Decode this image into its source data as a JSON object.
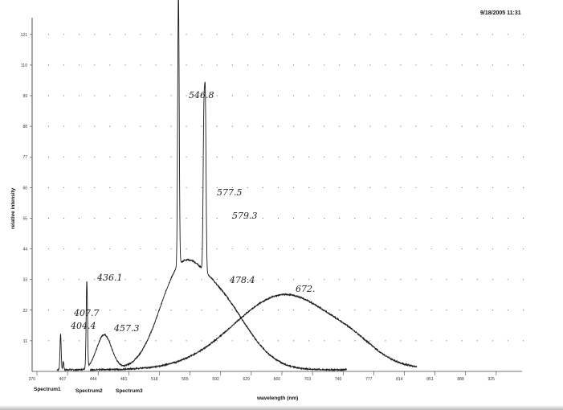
{
  "timestamp": "9/18/2005 11:31",
  "chart_data": {
    "type": "line",
    "xlabel": "wavelength (nm)",
    "ylabel": "relative intensity",
    "xlim": [
      370,
      962
    ],
    "ylim": [
      0,
      127
    ],
    "x_ticks": [
      "370",
      "407",
      "444",
      "481",
      "518",
      "555",
      "592",
      "629",
      "666",
      "703",
      "740",
      "777",
      "814",
      "851",
      "888",
      "925"
    ],
    "y_ticks": [
      "11",
      "22",
      "33",
      "44",
      "55",
      "66",
      "77",
      "88",
      "99",
      "110",
      "121"
    ],
    "grid": "dotted",
    "legend": [
      "Spectrum1",
      "Spectrum2",
      "Spectrum3"
    ],
    "annotations": [
      {
        "text": "546.8",
        "x": 546.8,
        "y": 100
      },
      {
        "text": "577.5",
        "x": 577.5,
        "y": 63
      },
      {
        "text": "579.3",
        "x": 579.3,
        "y": 56
      },
      {
        "text": "436.1",
        "x": 436.1,
        "y": 34
      },
      {
        "text": "407.7",
        "x": 407.7,
        "y": 21
      },
      {
        "text": "404.4",
        "x": 404.4,
        "y": 16
      },
      {
        "text": "457.3",
        "x": 457.3,
        "y": 15
      },
      {
        "text": "478.4",
        "x": 478.4,
        "y": 33
      },
      {
        "text": "672.",
        "x": 672,
        "y": 30
      }
    ],
    "series": [
      {
        "peaks": [
          {
            "x": 404.4,
            "h": 13,
            "w": 0.7
          },
          {
            "x": 407.7,
            "h": 3,
            "w": 0.6
          },
          {
            "x": 436.1,
            "h": 31,
            "w": 0.8
          },
          {
            "x": 546.8,
            "h": 99,
            "w": 0.9
          },
          {
            "x": 577.5,
            "h": 52,
            "w": 0.9
          },
          {
            "x": 579.3,
            "h": 58,
            "w": 0.9
          }
        ],
        "bumps": [
          {
            "x": 457,
            "h": 12.5,
            "w": 9
          },
          {
            "x": 545,
            "h": 22,
            "w": 24
          },
          {
            "x": 588,
            "h": 28,
            "w": 38
          }
        ],
        "x_range": [
          400,
          750
        ]
      },
      {
        "bumps": [
          {
            "x": 676,
            "h": 27,
            "w": 62
          },
          {
            "x": 760,
            "h": 3,
            "w": 25
          }
        ],
        "x_range": [
          440,
          835
        ]
      }
    ]
  }
}
